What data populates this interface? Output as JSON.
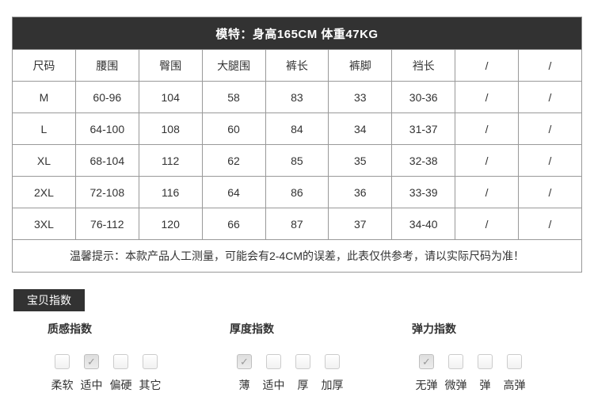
{
  "model_bar": {
    "text": "模特：身高165CM 体重47KG"
  },
  "size_table": {
    "headers": [
      "尺码",
      "腰围",
      "臀围",
      "大腿围",
      "裤长",
      "裤脚",
      "裆长",
      "/",
      "/"
    ],
    "rows": [
      [
        "M",
        "60-96",
        "104",
        "58",
        "83",
        "33",
        "30-36",
        "/",
        "/"
      ],
      [
        "L",
        "64-100",
        "108",
        "60",
        "84",
        "34",
        "31-37",
        "/",
        "/"
      ],
      [
        "XL",
        "68-104",
        "112",
        "62",
        "85",
        "35",
        "32-38",
        "/",
        "/"
      ],
      [
        "2XL",
        "72-108",
        "116",
        "64",
        "86",
        "36",
        "33-39",
        "/",
        "/"
      ],
      [
        "3XL",
        "76-112",
        "120",
        "66",
        "87",
        "37",
        "34-40",
        "/",
        "/"
      ]
    ],
    "tip": "温馨提示：本款产品人工测量，可能会有2-4CM的误差，此表仅供参考，请以实际尺码为准！"
  },
  "section": {
    "badge_label": "宝贝指数"
  },
  "indices": {
    "groups": [
      {
        "title": "质感指数",
        "options": [
          {
            "label": "柔软",
            "checked": false
          },
          {
            "label": "适中",
            "checked": true
          },
          {
            "label": "偏硬",
            "checked": false
          },
          {
            "label": "其它",
            "checked": false
          }
        ]
      },
      {
        "title": "厚度指数",
        "options": [
          {
            "label": "薄",
            "checked": true
          },
          {
            "label": "适中",
            "checked": false
          },
          {
            "label": "厚",
            "checked": false
          },
          {
            "label": "加厚",
            "checked": false
          }
        ]
      },
      {
        "title": "弹力指数",
        "options": [
          {
            "label": "无弹",
            "checked": true
          },
          {
            "label": "微弹",
            "checked": false
          },
          {
            "label": "弹",
            "checked": false
          },
          {
            "label": "高弹",
            "checked": false
          }
        ]
      }
    ]
  },
  "icons": {
    "check": "✓"
  },
  "colors": {
    "bar_background": "#323232",
    "table_border": "#999999",
    "text": "#333333",
    "checkbox_border": "#cccccc",
    "checkmark": "#999999"
  }
}
